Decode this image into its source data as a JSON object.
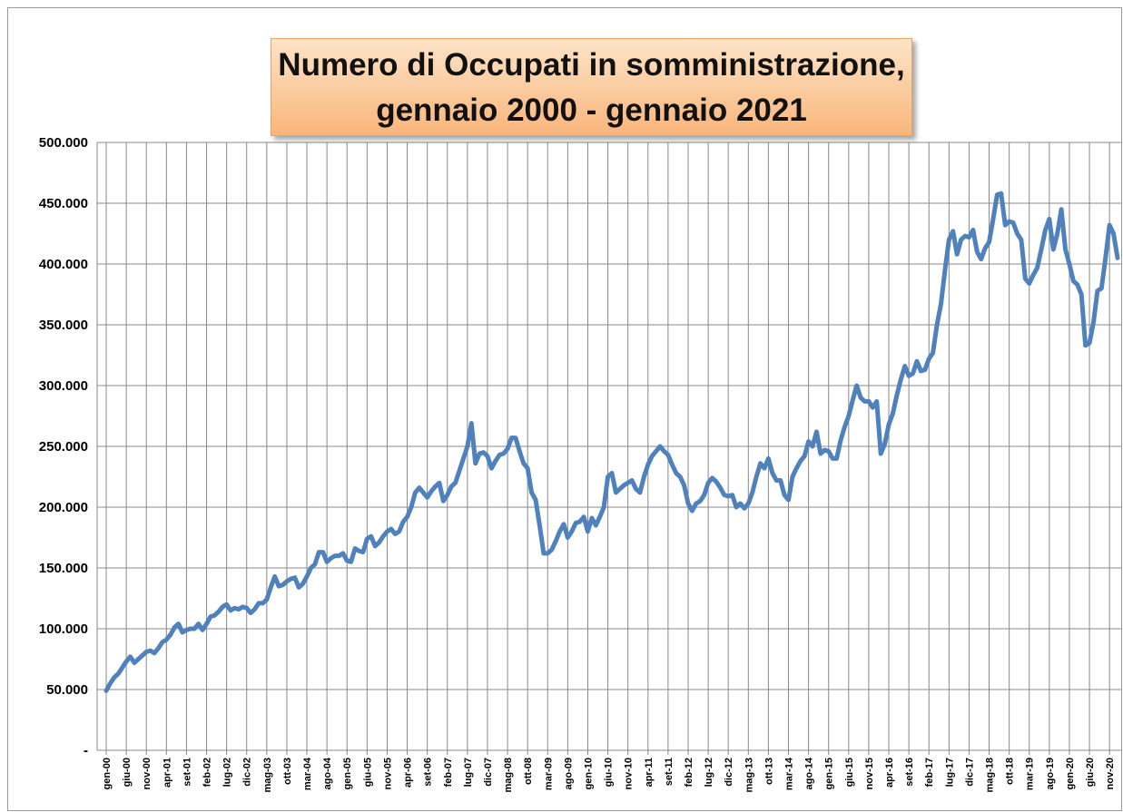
{
  "chart_data": {
    "type": "line",
    "title": "Numero di Occupati in somministrazione, gennaio 2000 - gennaio 2021",
    "categories": [
      "gen-00",
      null,
      null,
      null,
      null,
      "giu-00",
      null,
      null,
      null,
      null,
      "nov-00",
      null,
      null,
      null,
      null,
      "apr-01",
      null,
      null,
      null,
      null,
      "set-01",
      null,
      null,
      null,
      null,
      "feb-02",
      null,
      null,
      null,
      null,
      "lug-02",
      null,
      null,
      null,
      null,
      "dic-02",
      null,
      null,
      null,
      null,
      "mag-03",
      null,
      null,
      null,
      null,
      "ott-03",
      null,
      null,
      null,
      null,
      "mar-04",
      null,
      null,
      null,
      null,
      "ago-04",
      null,
      null,
      null,
      null,
      "gen-05",
      null,
      null,
      null,
      null,
      "giu-05",
      null,
      null,
      null,
      null,
      "nov-05",
      null,
      null,
      null,
      null,
      "apr-06",
      null,
      null,
      null,
      null,
      "set-06",
      null,
      null,
      null,
      null,
      "feb-07",
      null,
      null,
      null,
      null,
      "lug-07",
      null,
      null,
      null,
      null,
      "dic-07",
      null,
      null,
      null,
      null,
      "mag-08",
      null,
      null,
      null,
      null,
      "ott-08",
      null,
      null,
      null,
      null,
      "mar-09",
      null,
      null,
      null,
      null,
      "ago-09",
      null,
      null,
      null,
      null,
      "gen-10",
      null,
      null,
      null,
      null,
      "giu-10",
      null,
      null,
      null,
      null,
      "nov-10",
      null,
      null,
      null,
      null,
      "apr-11",
      null,
      null,
      null,
      null,
      "set-11",
      null,
      null,
      null,
      null,
      "feb-12",
      null,
      null,
      null,
      null,
      "lug-12",
      null,
      null,
      null,
      null,
      "dic-12",
      null,
      null,
      null,
      null,
      "mag-13",
      null,
      null,
      null,
      null,
      "ott-13",
      null,
      null,
      null,
      null,
      "mar-14",
      null,
      null,
      null,
      null,
      "ago-14",
      null,
      null,
      null,
      null,
      "gen-15",
      null,
      null,
      null,
      null,
      "giu-15",
      null,
      null,
      null,
      null,
      "nov-15",
      null,
      null,
      null,
      null,
      "apr-16",
      null,
      null,
      null,
      null,
      "set-16",
      null,
      null,
      null,
      null,
      "feb-17",
      null,
      null,
      null,
      null,
      "lug-17",
      null,
      null,
      null,
      null,
      "dic-17",
      null,
      null,
      null,
      null,
      "mag-18",
      null,
      null,
      null,
      null,
      "ott-18",
      null,
      null,
      null,
      null,
      "mar-19",
      null,
      null,
      null,
      null,
      "ago-19",
      null,
      null,
      null,
      null,
      "gen-20",
      null,
      null,
      null,
      null,
      "giu-20",
      null,
      null,
      null,
      null,
      "nov-20",
      null,
      null
    ],
    "values": [
      49000,
      55000,
      60000,
      63000,
      68000,
      73000,
      77000,
      72000,
      75000,
      78000,
      81000,
      82000,
      80000,
      84000,
      89000,
      91000,
      95000,
      101000,
      104000,
      97000,
      99000,
      100000,
      100000,
      104000,
      99000,
      104000,
      110000,
      111000,
      114000,
      118000,
      120000,
      115000,
      117000,
      116000,
      118000,
      117000,
      113000,
      116000,
      121000,
      121000,
      124000,
      134000,
      143000,
      135000,
      136000,
      139000,
      141000,
      142000,
      134000,
      137000,
      143000,
      150000,
      153000,
      163000,
      163000,
      155000,
      158000,
      160000,
      160000,
      162000,
      156000,
      155000,
      166000,
      164000,
      163000,
      174000,
      176000,
      168000,
      171000,
      176000,
      180000,
      182000,
      178000,
      180000,
      188000,
      192000,
      200000,
      212000,
      216000,
      212000,
      208000,
      213000,
      217000,
      220000,
      205000,
      210000,
      217000,
      220000,
      230000,
      240000,
      250000,
      269000,
      236000,
      244000,
      245000,
      242000,
      232000,
      238000,
      243000,
      244000,
      248000,
      257000,
      257000,
      246000,
      236000,
      232000,
      212000,
      206000,
      185000,
      162000,
      162000,
      165000,
      172000,
      180000,
      186000,
      175000,
      180000,
      187000,
      188000,
      192000,
      180000,
      191000,
      185000,
      192000,
      200000,
      225000,
      228000,
      212000,
      215000,
      218000,
      220000,
      222000,
      215000,
      212000,
      225000,
      235000,
      242000,
      246000,
      250000,
      246000,
      243000,
      235000,
      228000,
      225000,
      218000,
      203000,
      197000,
      203000,
      205000,
      210000,
      220000,
      224000,
      221000,
      216000,
      210000,
      209000,
      210000,
      200000,
      203000,
      199000,
      203000,
      212000,
      225000,
      236000,
      232000,
      240000,
      228000,
      222000,
      222000,
      210000,
      206000,
      225000,
      232000,
      238000,
      242000,
      254000,
      250000,
      262000,
      244000,
      247000,
      246000,
      240000,
      240000,
      255000,
      266000,
      275000,
      288000,
      300000,
      290000,
      287000,
      287000,
      282000,
      287000,
      244000,
      252000,
      268000,
      277000,
      292000,
      305000,
      316000,
      308000,
      310000,
      320000,
      312000,
      313000,
      322000,
      327000,
      350000,
      367000,
      395000,
      420000,
      427000,
      408000,
      420000,
      423000,
      422000,
      428000,
      410000,
      404000,
      413000,
      418000,
      437000,
      457000,
      458000,
      432000,
      435000,
      434000,
      425000,
      420000,
      388000,
      384000,
      391000,
      397000,
      412000,
      428000,
      437000,
      412000,
      425000,
      445000,
      412000,
      400000,
      386000,
      383000,
      375000,
      333000,
      335000,
      352000,
      378000,
      380000,
      405000,
      432000,
      425000,
      405000
    ],
    "color": "#4f81bd",
    "ylim": [
      0,
      500000
    ],
    "yticks": [
      {
        "value": 0,
        "label": "-"
      },
      {
        "value": 50000,
        "label": "50.000"
      },
      {
        "value": 100000,
        "label": "100.000"
      },
      {
        "value": 150000,
        "label": "150.000"
      },
      {
        "value": 200000,
        "label": "200.000"
      },
      {
        "value": 250000,
        "label": "250.000"
      },
      {
        "value": 300000,
        "label": "300.000"
      },
      {
        "value": 350000,
        "label": "350.000"
      },
      {
        "value": 400000,
        "label": "400.000"
      },
      {
        "value": 450000,
        "label": "450.000"
      },
      {
        "value": 500000,
        "label": "500.000"
      }
    ],
    "grid": true
  }
}
